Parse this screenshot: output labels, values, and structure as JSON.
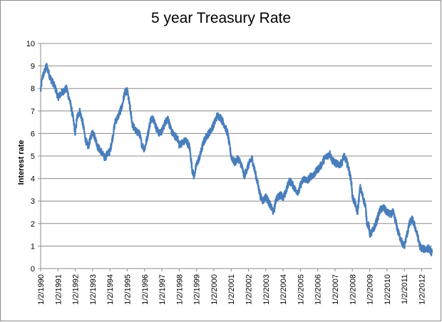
{
  "chart_data": {
    "type": "line",
    "title": "5 year Treasury Rate",
    "xlabel": "",
    "ylabel": "Interest rate",
    "ylim": [
      0,
      10
    ],
    "yticks": [
      0,
      1,
      2,
      3,
      4,
      5,
      6,
      7,
      8,
      9,
      10
    ],
    "xlim": [
      1990.0,
      2012.6
    ],
    "xtick_labels": [
      "1/2/1990",
      "1/2/1991",
      "1/2/1992",
      "1/2/1993",
      "1/2/1994",
      "1/2/1995",
      "1/2/1996",
      "1/2/1997",
      "1/2/1998",
      "1/2/1999",
      "1/2/2000",
      "1/2/2001",
      "1/2/2002",
      "1/2/2003",
      "1/2/2004",
      "1/2/2005",
      "1/2/2006",
      "1/2/2007",
      "1/2/2008",
      "1/2/2009",
      "1/2/2010",
      "1/2/2011",
      "1/2/2012"
    ],
    "grid": "horizontal",
    "line_color": "#4a7ebb",
    "series": [
      {
        "x": [
          1990.0,
          1990.1,
          1990.25,
          1990.35,
          1990.5,
          1990.6,
          1990.75,
          1990.9,
          1991.0,
          1991.2,
          1991.35,
          1991.5,
          1991.7,
          1991.85,
          1992.0,
          1992.1,
          1992.25,
          1992.4,
          1992.6,
          1992.75,
          1992.85,
          1993.0,
          1993.15,
          1993.3,
          1993.5,
          1993.7,
          1993.85,
          1994.0,
          1994.15,
          1994.3,
          1994.5,
          1994.7,
          1994.85,
          1995.0,
          1995.15,
          1995.3,
          1995.5,
          1995.7,
          1995.85,
          1996.0,
          1996.15,
          1996.35,
          1996.5,
          1996.7,
          1996.85,
          1997.0,
          1997.2,
          1997.35,
          1997.5,
          1997.7,
          1997.9,
          1998.0,
          1998.2,
          1998.4,
          1998.6,
          1998.75,
          1998.85,
          1999.0,
          1999.2,
          1999.4,
          1999.6,
          1999.8,
          2000.0,
          2000.2,
          2000.4,
          2000.6,
          2000.8,
          2001.0,
          2001.2,
          2001.4,
          2001.6,
          2001.75,
          2001.9,
          2002.0,
          2002.2,
          2002.35,
          2002.5,
          2002.7,
          2002.85,
          2003.0,
          2003.2,
          2003.45,
          2003.6,
          2003.75,
          2003.9,
          2004.0,
          2004.2,
          2004.35,
          2004.5,
          2004.7,
          2004.9,
          2005.0,
          2005.2,
          2005.4,
          2005.6,
          2005.8,
          2006.0,
          2006.2,
          2006.4,
          2006.55,
          2006.7,
          2006.85,
          2007.0,
          2007.2,
          2007.4,
          2007.5,
          2007.65,
          2007.8,
          2007.95,
          2008.0,
          2008.15,
          2008.3,
          2008.45,
          2008.6,
          2008.75,
          2008.85,
          2008.95,
          2009.0,
          2009.2,
          2009.4,
          2009.6,
          2009.8,
          2010.0,
          2010.2,
          2010.35,
          2010.5,
          2010.65,
          2010.8,
          2010.9,
          2011.0,
          2011.15,
          2011.3,
          2011.45,
          2011.6,
          2011.75,
          2011.9,
          2012.0,
          2012.2,
          2012.4,
          2012.6
        ],
        "values": [
          7.9,
          8.5,
          8.8,
          9.0,
          8.6,
          8.4,
          8.2,
          7.9,
          7.6,
          7.8,
          7.9,
          8.0,
          7.4,
          6.8,
          6.0,
          6.7,
          7.0,
          6.6,
          5.7,
          5.4,
          5.7,
          6.1,
          5.8,
          5.4,
          5.2,
          4.9,
          5.1,
          5.2,
          5.8,
          6.5,
          6.8,
          7.2,
          7.8,
          7.9,
          7.2,
          6.4,
          6.1,
          6.0,
          5.5,
          5.3,
          5.8,
          6.6,
          6.7,
          6.2,
          6.0,
          6.1,
          6.5,
          6.7,
          6.2,
          5.9,
          5.8,
          5.5,
          5.6,
          5.7,
          5.4,
          4.4,
          4.1,
          4.6,
          5.0,
          5.6,
          5.9,
          6.1,
          6.4,
          6.8,
          6.7,
          6.4,
          6.0,
          5.0,
          4.7,
          4.9,
          4.6,
          4.1,
          4.4,
          4.6,
          4.9,
          4.4,
          3.9,
          3.2,
          3.0,
          3.2,
          2.9,
          2.5,
          3.1,
          3.2,
          3.3,
          3.1,
          3.5,
          3.9,
          3.8,
          3.5,
          3.4,
          3.7,
          4.0,
          3.9,
          4.1,
          4.2,
          4.4,
          4.6,
          4.9,
          5.0,
          5.1,
          4.8,
          4.7,
          4.6,
          4.7,
          5.0,
          4.8,
          4.4,
          3.8,
          3.2,
          2.9,
          2.5,
          3.6,
          3.2,
          2.8,
          2.0,
          1.9,
          1.5,
          1.7,
          2.1,
          2.6,
          2.7,
          2.5,
          2.4,
          2.5,
          2.1,
          1.6,
          1.3,
          1.1,
          1.0,
          1.5,
          2.0,
          2.2,
          1.9,
          1.5,
          1.0,
          0.9,
          0.85,
          0.9,
          0.7
        ]
      }
    ]
  }
}
